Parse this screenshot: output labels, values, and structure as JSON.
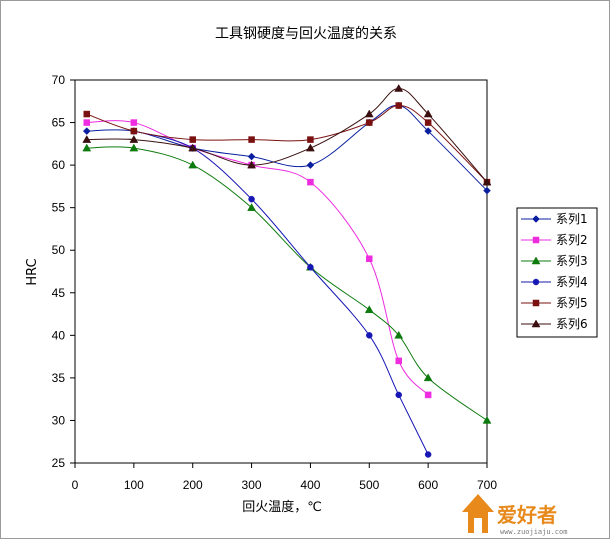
{
  "chart_data": {
    "type": "line",
    "title": "工具钢硬度与回火温度的关系",
    "xlabel": "回火温度，℃",
    "ylabel": "HRC",
    "xlim": [
      0,
      700
    ],
    "ylim": [
      25,
      70
    ],
    "x_ticks": [
      0,
      100,
      200,
      300,
      400,
      500,
      600,
      700
    ],
    "y_ticks": [
      25,
      30,
      35,
      40,
      45,
      50,
      55,
      60,
      65,
      70
    ],
    "grid": false,
    "legend_position": "right",
    "series": [
      {
        "name": "系列1",
        "color": "#0a1fa0",
        "marker": "diamond",
        "x": [
          20,
          100,
          200,
          300,
          400,
          500,
          550,
          600,
          700
        ],
        "y": [
          64,
          64,
          62,
          61,
          60,
          65,
          67,
          64,
          57
        ]
      },
      {
        "name": "系列2",
        "color": "#ee2ce0",
        "marker": "square",
        "x": [
          20,
          100,
          200,
          300,
          400,
          500,
          550,
          600
        ],
        "y": [
          65,
          65,
          62,
          60,
          58,
          49,
          37,
          33
        ]
      },
      {
        "name": "系列3",
        "color": "#0d7a0d",
        "marker": "triangle",
        "x": [
          20,
          100,
          200,
          300,
          400,
          500,
          550,
          600,
          700
        ],
        "y": [
          62,
          62,
          60,
          55,
          48,
          43,
          40,
          35,
          30
        ]
      },
      {
        "name": "系列4",
        "color": "#1717b5",
        "marker": "circle",
        "x": [
          100,
          200,
          300,
          400,
          500,
          550,
          600
        ],
        "y": [
          64,
          62,
          56,
          48,
          40,
          33,
          26
        ]
      },
      {
        "name": "系列5",
        "color": "#7a1010",
        "marker": "square",
        "x": [
          20,
          100,
          200,
          300,
          400,
          500,
          550,
          600,
          700
        ],
        "y": [
          66,
          64,
          63,
          63,
          63,
          65,
          67,
          65,
          58
        ]
      },
      {
        "name": "系列6",
        "color": "#3b0f0f",
        "marker": "triangle",
        "x": [
          20,
          100,
          200,
          300,
          400,
          500,
          550,
          600,
          700
        ],
        "y": [
          63,
          63,
          62,
          60,
          62,
          66,
          69,
          66,
          58
        ]
      }
    ]
  },
  "watermark": {
    "main": "爱好者",
    "sub": "www.zuojiaju.com"
  }
}
